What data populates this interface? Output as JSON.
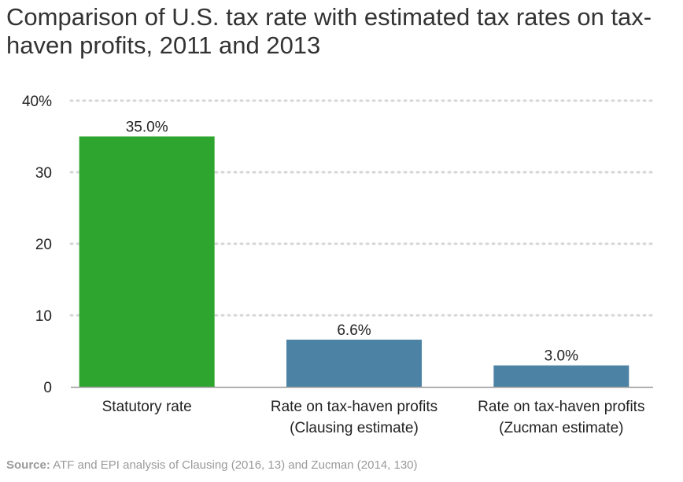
{
  "chart_data": {
    "type": "bar",
    "title": "Comparison of U.S. tax rate with estimated tax rates on tax-haven profits, 2011 and 2013",
    "categories": [
      [
        "Statutory rate"
      ],
      [
        "Rate on tax-haven profits",
        "(Clausing estimate)"
      ],
      [
        "Rate on tax-haven profits",
        "(Zucman estimate)"
      ]
    ],
    "values": [
      35.0,
      6.6,
      3.0
    ],
    "data_labels": [
      "35.0%",
      "6.6%",
      "3.0%"
    ],
    "bar_colors": [
      "#2ea52e",
      "#4c82a3",
      "#4c82a3"
    ],
    "yticks": [
      0,
      10,
      20,
      30,
      40
    ],
    "ytick_labels": [
      "0",
      "10",
      "20",
      "30",
      "40%"
    ],
    "ylim": [
      0,
      40
    ],
    "grid": true,
    "grid_color": "#d6d6d6",
    "xlabel": "",
    "ylabel": ""
  },
  "source": {
    "label": "Source:",
    "text": " ATF and EPI analysis of Clausing (2016, 13) and Zucman (2014, 130)"
  }
}
